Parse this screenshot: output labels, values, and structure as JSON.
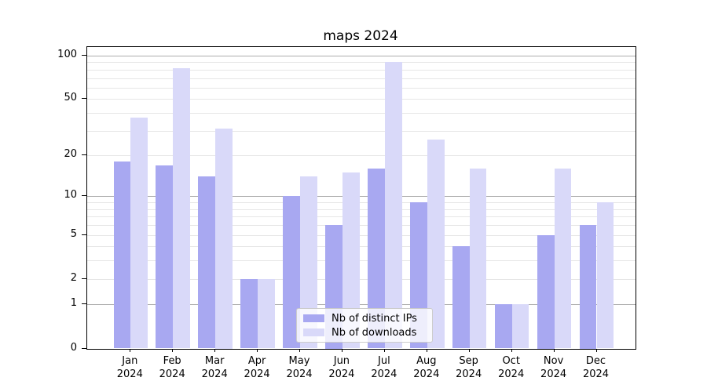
{
  "title": "maps 2024",
  "chart_data": {
    "type": "bar",
    "title": "maps 2024",
    "categories": [
      "Jan",
      "Feb",
      "Mar",
      "Apr",
      "May",
      "Jun",
      "Jul",
      "Aug",
      "Sep",
      "Oct",
      "Nov",
      "Dec"
    ],
    "category_year": "2024",
    "series": [
      {
        "name": "Nb of distinct IPs",
        "color": "#a8a8f1",
        "values": [
          18,
          17,
          14,
          2,
          10,
          6,
          16,
          9,
          4,
          1,
          5,
          6
        ]
      },
      {
        "name": "Nb of downloads",
        "color": "#d9d9f9",
        "values": [
          37,
          82,
          31,
          2,
          14,
          15,
          90,
          26,
          16,
          1,
          16,
          9
        ]
      }
    ],
    "xlabel": "",
    "ylabel": "",
    "y_axis": {
      "scale": "log1p",
      "tick_values": [
        0,
        1,
        2,
        5,
        10,
        20,
        50,
        100
      ],
      "major_grid_values": [
        1,
        10,
        100
      ],
      "minor_grid_values": [
        2,
        3,
        4,
        5,
        6,
        7,
        8,
        9,
        20,
        30,
        40,
        50,
        60,
        70,
        80,
        90
      ],
      "ylim": [
        0,
        115
      ]
    },
    "grid": "horizontal major+minor",
    "legend_position": "lower center"
  },
  "colors": {
    "bar_ips": "#a8a8f1",
    "bar_downloads": "#d9d9f9",
    "grid_major": "#ababab",
    "grid_minor": "#e6e6e6",
    "spine": "#000000",
    "legend_border": "#cccccc"
  }
}
